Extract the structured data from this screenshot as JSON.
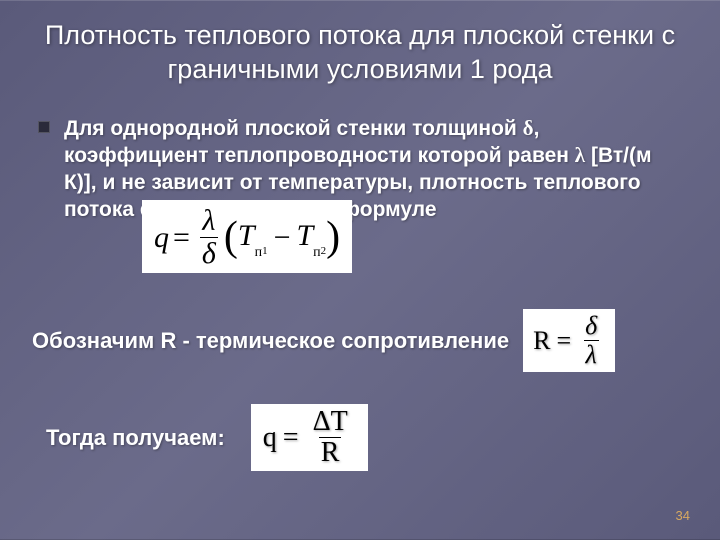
{
  "title": "Плотность теплового потока для плоской стенки с граничными условиями 1 рода",
  "bullet": {
    "part1": "Для однородной плоской стенки толщиной ",
    "delta": "δ",
    "part2": ", коэффициент теплопроводности которой равен ",
    "lambda": "λ",
    "part3": "  [Вт/(м К)], и не зависит от температуры, плотность теплового потока q определяется по формуле"
  },
  "formula_main": {
    "q": "q",
    "eq": "=",
    "lambda": "λ",
    "delta": "δ",
    "T1_T": "T",
    "T1_sub1": "п",
    "T1_sub2": "1",
    "minus": "−",
    "T2_T": "T",
    "T2_sub1": "п",
    "T2_sub2": "2"
  },
  "line2_text": "Обозначим R - термическое сопротивление",
  "formula_r": {
    "R": "R",
    "eq": "=",
    "delta": "δ",
    "lambda": "λ"
  },
  "line3_text": "Тогда получаем:",
  "formula_q": {
    "q": "q",
    "eq": "=",
    "dT": "ΔT",
    "R": "R"
  },
  "page_number": "34",
  "colors": {
    "bg": "#60607e",
    "text": "#ffffff",
    "formula_bg": "#ffffff",
    "formula_text": "#000000",
    "page_num": "#d8a860",
    "bullet_marker": "#2a2a3a"
  }
}
